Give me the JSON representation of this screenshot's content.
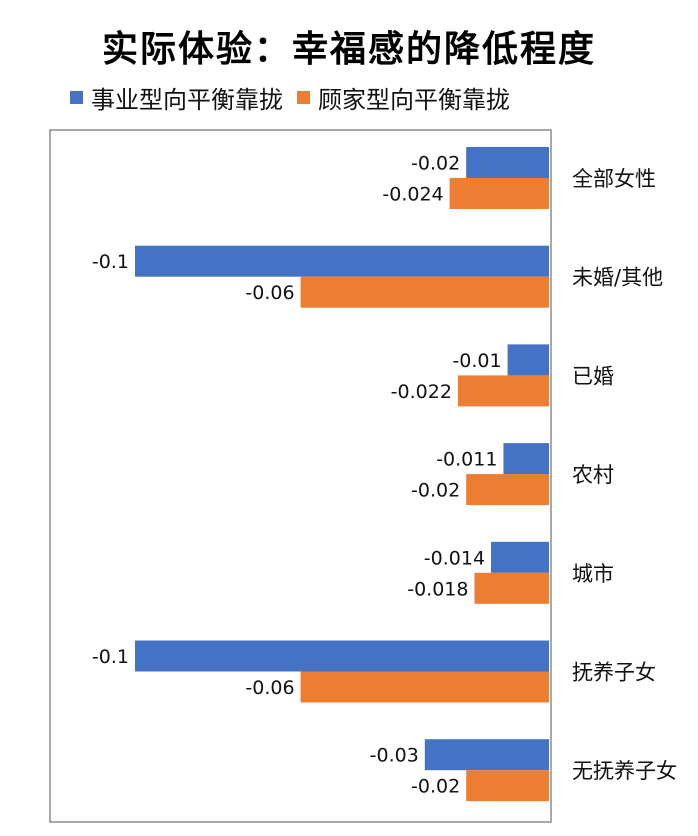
{
  "chart_data": {
    "type": "bar",
    "orientation": "horizontal",
    "title": "实际体验：幸福感的降低程度",
    "categories": [
      "全部女性",
      "未婚/其他",
      "已婚",
      "农村",
      "城市",
      "抚养子女",
      "无抚养子女"
    ],
    "series": [
      {
        "name": "事业型向平衡靠拢",
        "color": "#4472c4",
        "values": [
          -0.02,
          -0.1,
          -0.01,
          -0.011,
          -0.014,
          -0.1,
          -0.03
        ],
        "labels": [
          "-0.02",
          "-0.1",
          "-0.01",
          "-0.011",
          "-0.014",
          "-0.1",
          "-0.03"
        ]
      },
      {
        "name": "顾家型向平衡靠拢",
        "color": "#ed7d31",
        "values": [
          -0.024,
          -0.06,
          -0.022,
          -0.02,
          -0.018,
          -0.06,
          -0.02
        ],
        "labels": [
          "-0.024",
          "-0.06",
          "-0.022",
          "-0.02",
          "-0.018",
          "-0.06",
          "-0.02"
        ]
      }
    ],
    "xlim": [
      -0.1,
      0
    ],
    "grid": false,
    "legend_position": "top-left"
  }
}
